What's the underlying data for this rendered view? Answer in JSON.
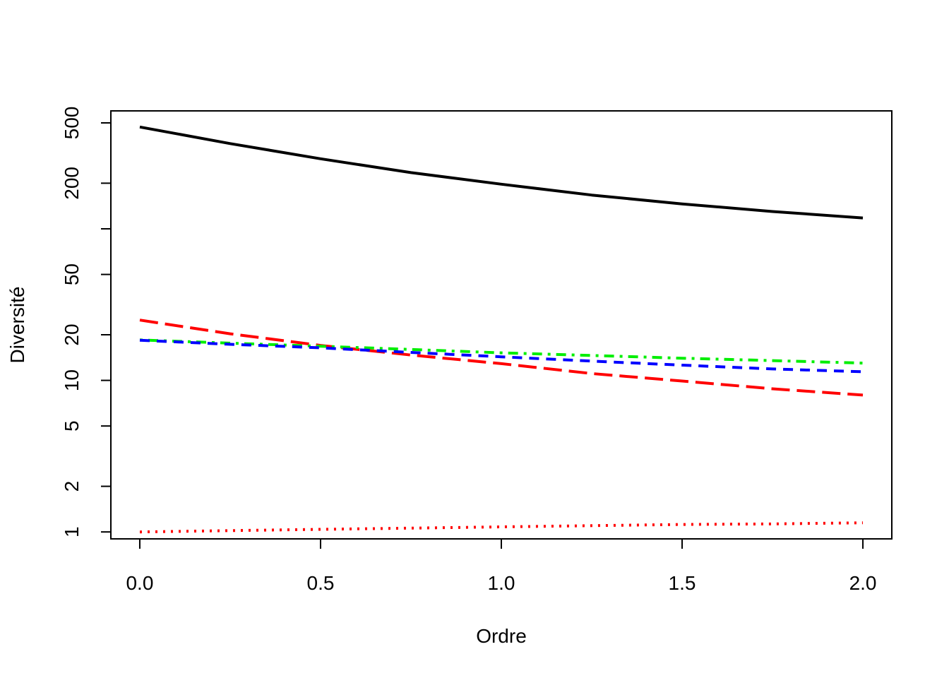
{
  "chart_data": {
    "type": "line",
    "title": "",
    "xlabel": "Ordre",
    "ylabel": "Diversité",
    "xlim": [
      -0.08,
      2.08
    ],
    "ylim": [
      0.9,
      600
    ],
    "yscale": "log",
    "grid": false,
    "x_ticks": [
      {
        "value": 0.0,
        "label": "0.0"
      },
      {
        "value": 0.5,
        "label": "0.5"
      },
      {
        "value": 1.0,
        "label": "1.0"
      },
      {
        "value": 1.5,
        "label": "1.5"
      },
      {
        "value": 2.0,
        "label": "2.0"
      }
    ],
    "y_ticks": [
      {
        "value": 1,
        "label": "1"
      },
      {
        "value": 2,
        "label": "2"
      },
      {
        "value": 5,
        "label": "5"
      },
      {
        "value": 10,
        "label": "10"
      },
      {
        "value": 20,
        "label": "20"
      },
      {
        "value": 50,
        "label": "50"
      },
      {
        "value": 100,
        "label": ""
      },
      {
        "value": 200,
        "label": "200"
      },
      {
        "value": 500,
        "label": "500"
      }
    ],
    "x": [
      0.0,
      0.25,
      0.5,
      0.75,
      1.0,
      1.25,
      1.5,
      1.75,
      2.0
    ],
    "series": [
      {
        "values": [
          470,
          365,
          290,
          235,
          197,
          167,
          146,
          130,
          118
        ],
        "color": "#000000",
        "dash": "solid"
      },
      {
        "values": [
          25,
          20.3,
          17,
          14.7,
          12.9,
          11.1,
          9.9,
          8.8,
          8.0
        ],
        "color": "#ff0000",
        "dash": "longdash"
      },
      {
        "values": [
          18.5,
          17.6,
          16.8,
          16.0,
          15.2,
          14.6,
          14.0,
          13.5,
          13.0
        ],
        "color": "#00ee00",
        "dash": "dotdash"
      },
      {
        "values": [
          18.4,
          17.3,
          16.4,
          15.3,
          14.3,
          13.4,
          12.6,
          11.9,
          11.4
        ],
        "color": "#0000ff",
        "dash": "dashed"
      },
      {
        "values": [
          1.0,
          1.02,
          1.04,
          1.06,
          1.08,
          1.1,
          1.12,
          1.13,
          1.15
        ],
        "color": "#ff0000",
        "dash": "dotted"
      }
    ]
  }
}
